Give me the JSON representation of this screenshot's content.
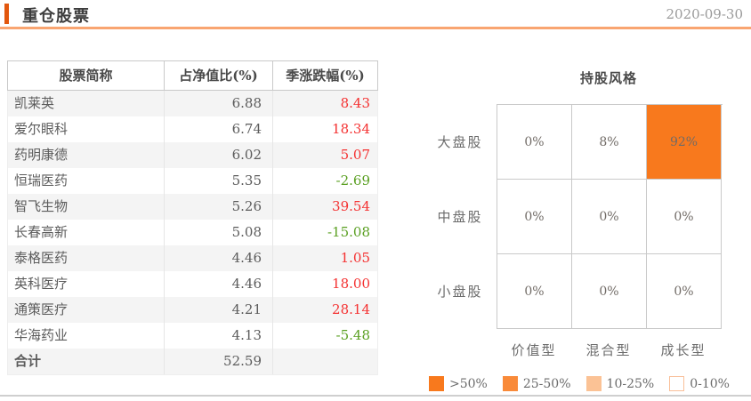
{
  "header": {
    "title": "重仓股票",
    "date": "2020-09-30"
  },
  "table": {
    "columns": [
      "股票简称",
      "占净值比(%)",
      "季涨跌幅(%)"
    ],
    "rows": [
      {
        "name": "凯莱英",
        "weight": "6.88",
        "change": "8.43"
      },
      {
        "name": "爱尔眼科",
        "weight": "6.74",
        "change": "18.34"
      },
      {
        "name": "药明康德",
        "weight": "6.02",
        "change": "5.07"
      },
      {
        "name": "恒瑞医药",
        "weight": "5.35",
        "change": "-2.69"
      },
      {
        "name": "智飞生物",
        "weight": "5.26",
        "change": "39.54"
      },
      {
        "name": "长春高新",
        "weight": "5.08",
        "change": "-15.08"
      },
      {
        "name": "泰格医药",
        "weight": "4.46",
        "change": "1.05"
      },
      {
        "name": "英科医疗",
        "weight": "4.46",
        "change": "18.00"
      },
      {
        "name": "通策医疗",
        "weight": "4.21",
        "change": "28.14"
      },
      {
        "name": "华海药业",
        "weight": "4.13",
        "change": "-5.48"
      }
    ],
    "total": {
      "label": "合计",
      "weight": "52.59",
      "change": ""
    }
  },
  "chart_data": [
    {
      "type": "table",
      "title": "重仓股票",
      "columns": [
        "股票简称",
        "占净值比(%)",
        "季涨跌幅(%)"
      ],
      "rows": [
        [
          "凯莱英",
          6.88,
          8.43
        ],
        [
          "爱尔眼科",
          6.74,
          18.34
        ],
        [
          "药明康德",
          6.02,
          5.07
        ],
        [
          "恒瑞医药",
          5.35,
          -2.69
        ],
        [
          "智飞生物",
          5.26,
          39.54
        ],
        [
          "长春高新",
          5.08,
          -15.08
        ],
        [
          "泰格医药",
          4.46,
          1.05
        ],
        [
          "英科医疗",
          4.46,
          18.0
        ],
        [
          "通策医疗",
          4.21,
          28.14
        ],
        [
          "华海药业",
          4.13,
          -5.48
        ]
      ],
      "total_row": [
        "合计",
        52.59,
        null
      ],
      "positive_color": "#f43131",
      "negative_color": "#5ba023"
    },
    {
      "type": "heatmap",
      "title": "持股风格",
      "row_labels": [
        "大盘股",
        "中盘股",
        "小盘股"
      ],
      "col_labels": [
        "价值型",
        "混合型",
        "成长型"
      ],
      "values": [
        [
          0,
          8,
          92
        ],
        [
          0,
          0,
          0
        ],
        [
          0,
          0,
          0
        ]
      ],
      "cells": [
        [
          "0%",
          "8%",
          "92%"
        ],
        [
          "0%",
          "0%",
          "0%"
        ],
        [
          "0%",
          "0%",
          "0%"
        ]
      ],
      "legend": [
        {
          "label": ">50%",
          "color": "#f8791d"
        },
        {
          "label": "25-50%",
          "color": "#f98a39"
        },
        {
          "label": "10-25%",
          "color": "#fbc295"
        },
        {
          "label": "0-10%",
          "color": "#ffffff",
          "border": "#f9c09a"
        }
      ]
    }
  ],
  "colors": {
    "accent_bar": "#e2570e",
    "header_underline": "#f9a571",
    "stripe": "#f4f4f4",
    "positive": "#f43131",
    "negative": "#5ba023",
    "heat_high": "#f8791d"
  }
}
